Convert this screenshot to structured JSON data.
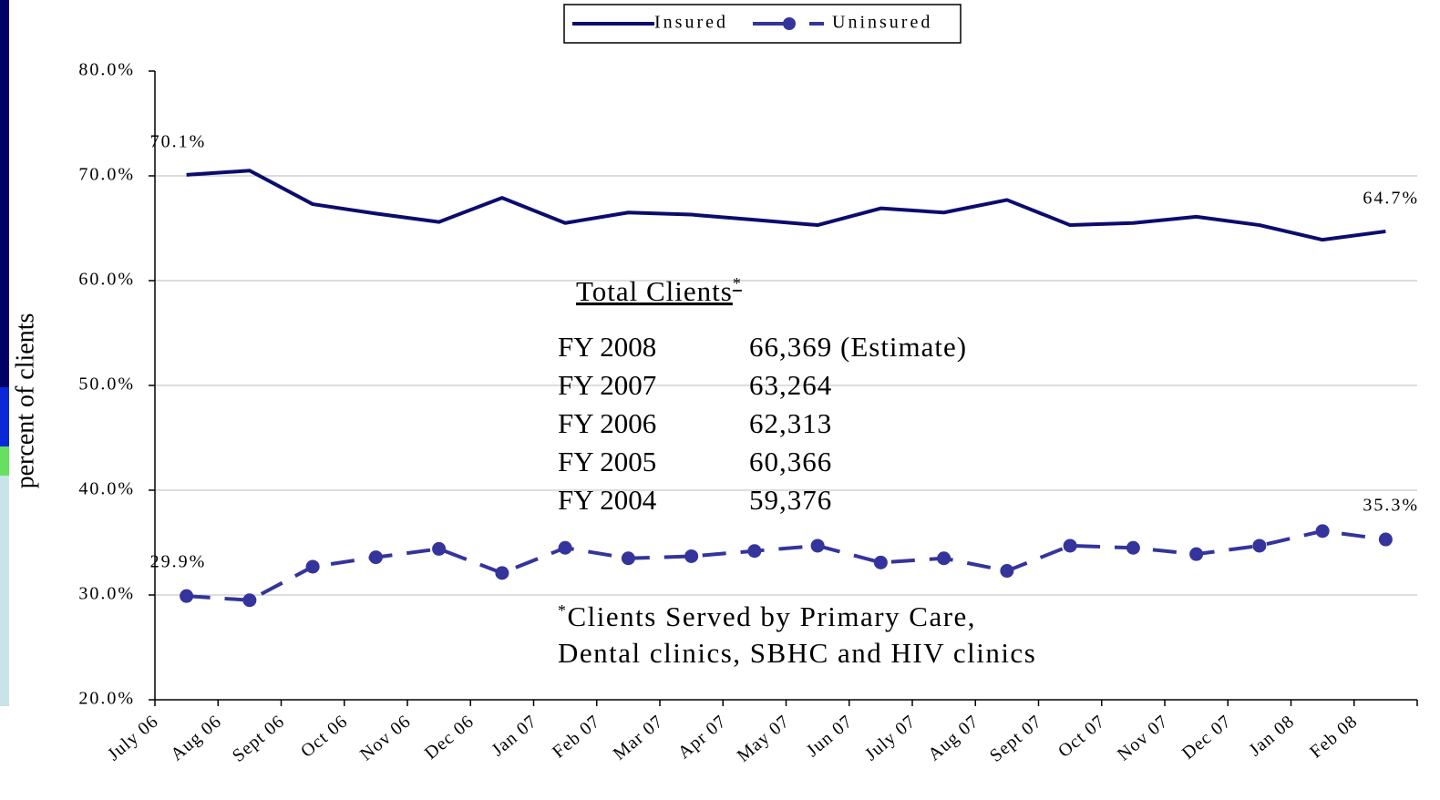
{
  "chart_data": {
    "type": "line",
    "y_label": "percent of clients",
    "categories": [
      "July 06",
      "Aug 06",
      "Sept 06",
      "Oct 06",
      "Nov 06",
      "Dec 06",
      "Jan 07",
      "Feb 07",
      "Mar 07",
      "Apr 07",
      "May 07",
      "Jun 07",
      "July 07",
      "Aug 07",
      "Sept 07",
      "Oct 07",
      "Nov 07",
      "Dec 07",
      "Jan 08",
      "Feb 08"
    ],
    "series": [
      {
        "name": "Insured",
        "color": "#0c0c6e",
        "dashed": false,
        "markers": false,
        "values": [
          70.1,
          70.5,
          67.3,
          66.4,
          65.6,
          67.9,
          65.5,
          66.5,
          66.3,
          65.8,
          65.3,
          66.9,
          66.5,
          67.7,
          65.3,
          65.5,
          66.1,
          65.3,
          63.9,
          64.7
        ],
        "value_labels": [
          "70.1%",
          null,
          null,
          null,
          null,
          null,
          null,
          null,
          null,
          null,
          null,
          null,
          null,
          null,
          null,
          null,
          null,
          null,
          null,
          "64.7%"
        ]
      },
      {
        "name": "Uninsured",
        "color": "#34349c",
        "dashed": true,
        "markers": true,
        "values": [
          29.9,
          29.5,
          32.7,
          33.6,
          34.4,
          32.1,
          34.5,
          33.5,
          33.7,
          34.2,
          34.7,
          33.1,
          33.5,
          32.3,
          34.7,
          34.5,
          33.9,
          34.7,
          36.1,
          35.3
        ],
        "value_labels": [
          "29.9%",
          null,
          null,
          null,
          null,
          null,
          null,
          null,
          null,
          null,
          null,
          null,
          null,
          null,
          null,
          null,
          null,
          null,
          null,
          "35.3%"
        ]
      }
    ],
    "ylim": [
      20,
      80
    ],
    "yticks": [
      {
        "value": 20,
        "label": "20.0%"
      },
      {
        "value": 30,
        "label": "30.0%"
      },
      {
        "value": 40,
        "label": "40.0%"
      },
      {
        "value": 50,
        "label": "50.0%"
      },
      {
        "value": 60,
        "label": "60.0%"
      },
      {
        "value": 70,
        "label": "70.0%"
      },
      {
        "value": 80,
        "label": "80.0%"
      }
    ],
    "grid": true,
    "legend": "top",
    "annotation": {
      "title": "Total Clients",
      "marker": "*",
      "rows": [
        [
          "FY 2008",
          "66,369 (Estimate)"
        ],
        [
          "FY 2007",
          "63,264"
        ],
        [
          "FY 2006",
          "62,313"
        ],
        [
          "FY 2005",
          "60,366"
        ],
        [
          "FY 2004",
          "59,376"
        ]
      ],
      "note": [
        "Clients Served by Primary Care,",
        "Dental clinics, SBHC and HIV clinics"
      ]
    }
  }
}
